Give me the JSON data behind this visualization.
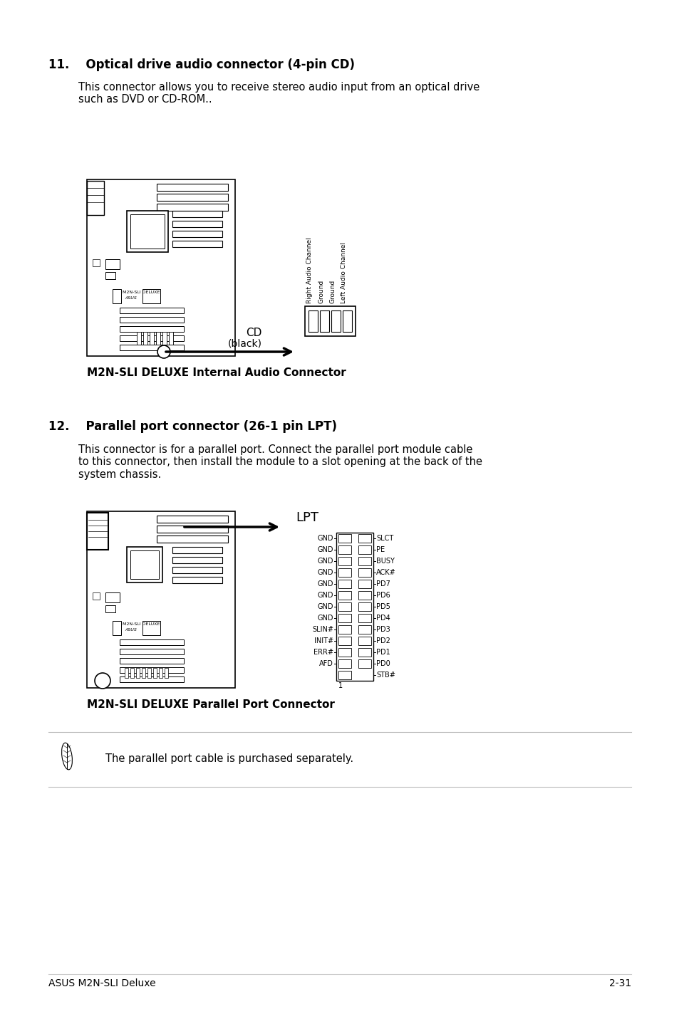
{
  "bg_color": "#ffffff",
  "section11_title": "11.    Optical drive audio connector (4-pin CD)",
  "section11_body": "This connector allows you to receive stereo audio input from an optical drive\nsuch as DVD or CD-ROM..",
  "section11_caption": "M2N-SLI DELUXE Internal Audio Connector",
  "section12_title": "12.    Parallel port connector (26-1 pin LPT)",
  "section12_body": "This connector is for a parallel port. Connect the parallel port module cable\nto this connector, then install the module to a slot opening at the back of the\nsystem chassis.",
  "section12_caption": "M2N-SLI DELUXE Parallel Port Connector",
  "note_text": "The parallel port cable is purchased separately.",
  "footer_left": "ASUS M2N-SLI Deluxe",
  "footer_right": "2-31",
  "lpt_left_labels": [
    "GND",
    "GND",
    "GND",
    "GND",
    "GND",
    "GND",
    "GND",
    "GND",
    "SLIN#",
    "INIT#",
    "ERR#",
    "AFD"
  ],
  "lpt_right_labels": [
    "SLCT",
    "PE",
    "BUSY",
    "ACK#",
    "PD7",
    "PD6",
    "PD5",
    "PD4",
    "PD3",
    "PD2",
    "PD1",
    "PD0",
    "STB#"
  ],
  "cd_labels": [
    "Right Audio Channel",
    "Ground",
    "Ground",
    "Left Audio Channel"
  ]
}
